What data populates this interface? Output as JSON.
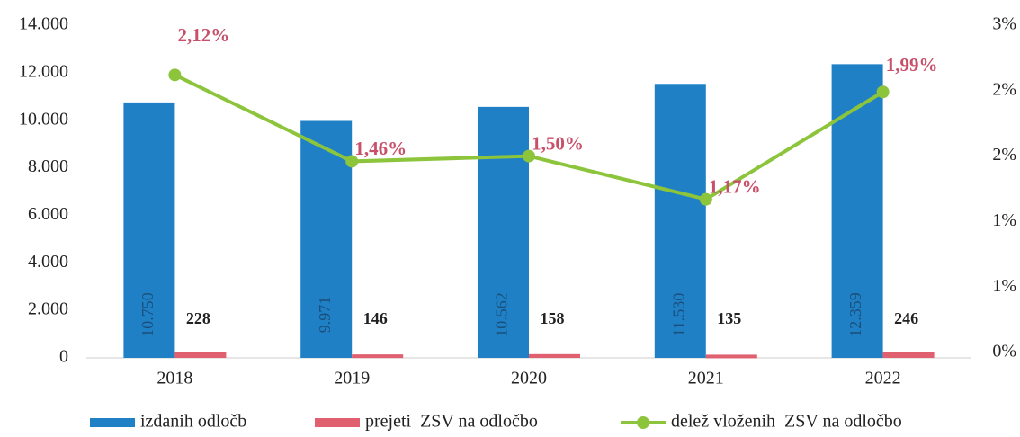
{
  "chart_data": {
    "type": "bar",
    "categories": [
      "2018",
      "2019",
      "2020",
      "2021",
      "2022"
    ],
    "series": [
      {
        "name": "izdanih odločb",
        "color": "#1f80c6",
        "values": [
          10750,
          9971,
          10562,
          11530,
          12359
        ],
        "value_labels": [
          "10.750",
          "9.971",
          "10.562",
          "11.530",
          "12.359"
        ]
      },
      {
        "name": "prejeti  ZSV na odločbo",
        "color": "#e0606f",
        "values": [
          228,
          146,
          158,
          135,
          246
        ]
      },
      {
        "name": "delež vloženih  ZSV na odločbo",
        "type": "line",
        "axis": "y2",
        "color": "#8cc43c",
        "values": [
          2.12,
          1.46,
          1.5,
          1.17,
          1.99
        ],
        "value_labels": [
          "2,12%",
          "1,46%",
          "1,50%",
          "1,17%",
          "1,99%"
        ]
      }
    ],
    "ylim": [
      0,
      14000
    ],
    "yticks": [
      0,
      {
        "value": 2000,
        "label": "2.000"
      },
      {
        "value": 4000,
        "label": "4.000"
      },
      {
        "value": 6000,
        "label": "6.000"
      },
      {
        "value": 8000,
        "label": "8.000"
      },
      {
        "value": 10000,
        "label": "10.000"
      },
      {
        "value": 12000,
        "label": "12.000"
      },
      {
        "value": 14000,
        "label": "14.000"
      }
    ],
    "y2lim": [
      0,
      2.5
    ],
    "y2ticks": [
      {
        "value": 0,
        "label": "0%"
      },
      {
        "value": 0.5,
        "label": "1%"
      },
      {
        "value": 1,
        "label": "1%"
      },
      {
        "value": 1.5,
        "label": "2%"
      },
      {
        "value": 2,
        "label": "2%"
      },
      {
        "value": 2.5,
        "label": "3%"
      }
    ],
    "legend": "bottom"
  }
}
